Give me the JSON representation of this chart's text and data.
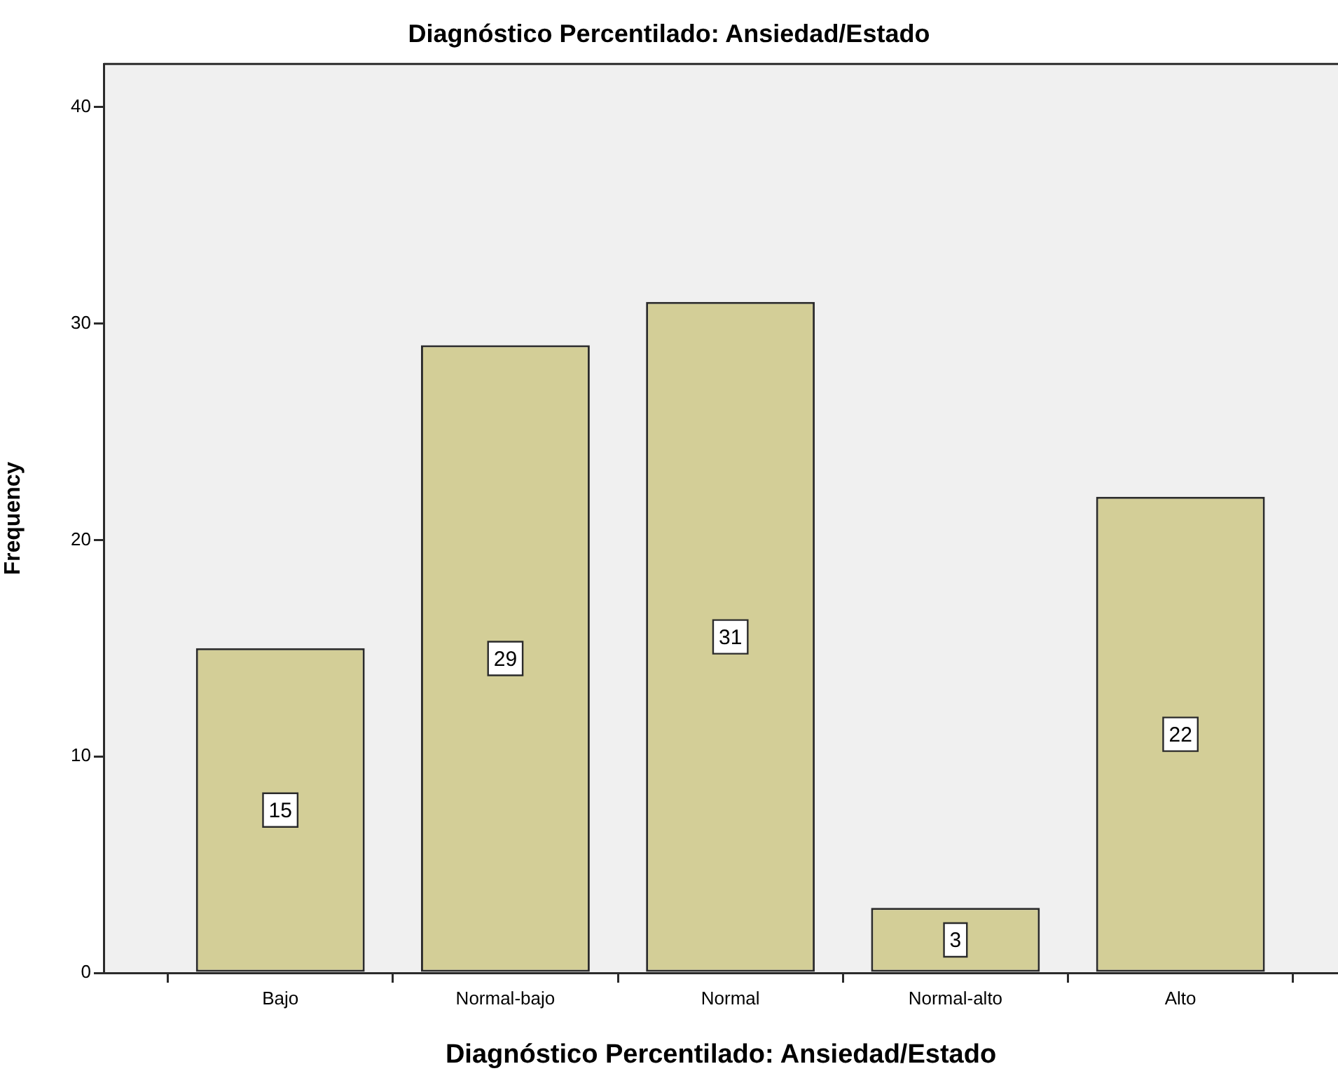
{
  "chart_data": {
    "type": "bar",
    "title": "Diagnóstico Percentilado: Ansiedad/Estado",
    "xlabel": "Diagnóstico Percentilado: Ansiedad/Estado",
    "ylabel": "Frequency",
    "categories": [
      "Bajo",
      "Normal-bajo",
      "Normal",
      "Normal-alto",
      "Alto"
    ],
    "values": [
      15,
      29,
      31,
      3,
      22
    ],
    "color": "#d3ce97",
    "ylim": [
      0,
      42
    ],
    "yticks": [
      0,
      10,
      20,
      30,
      40
    ],
    "grid": false,
    "legend": false,
    "data_labels": true
  }
}
